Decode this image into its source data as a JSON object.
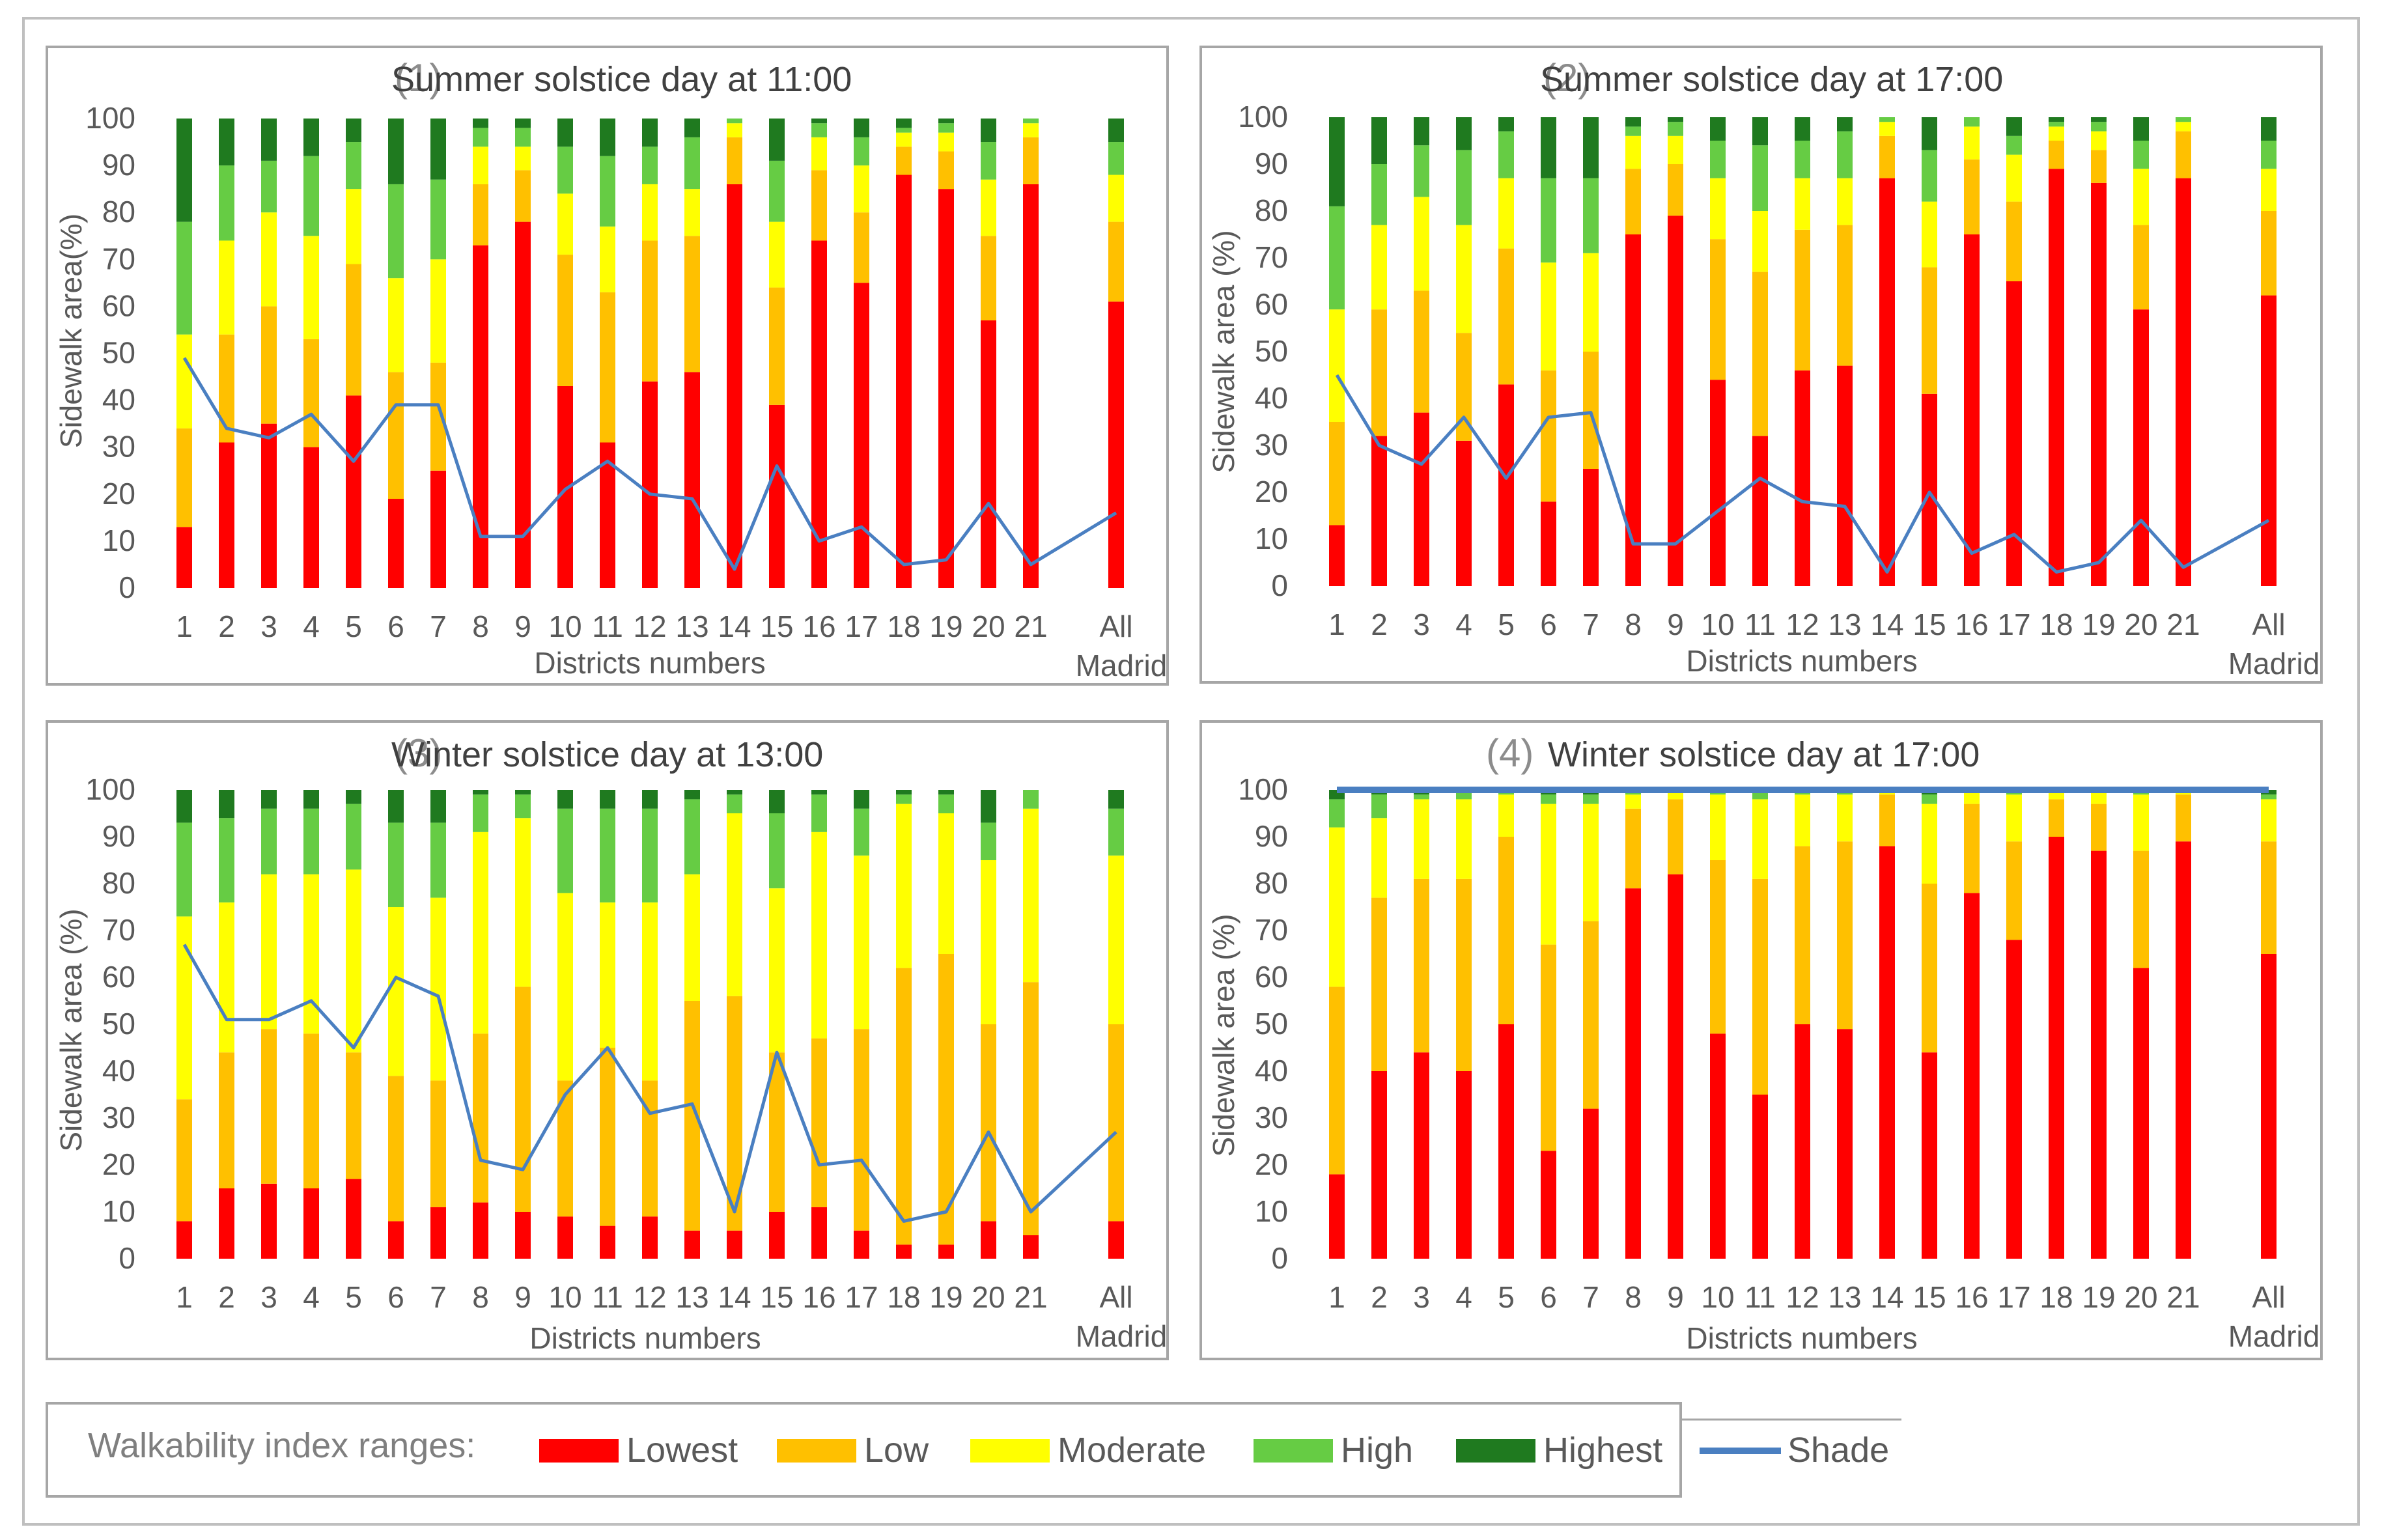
{
  "colors": {
    "Lowest": "#ff0000",
    "Low": "#ffc000",
    "Moderate": "#ffff00",
    "High": "#66cc44",
    "Highest": "#1f7a1f",
    "Shade": "#4a7fc1"
  },
  "legend": {
    "title": "Walkability index ranges:",
    "items": [
      {
        "label": "Lowest",
        "color": "#ff0000"
      },
      {
        "label": "Low",
        "color": "#ffc000"
      },
      {
        "label": "Moderate",
        "color": "#ffff00"
      },
      {
        "label": "High",
        "color": "#66cc44"
      },
      {
        "label": "Highest",
        "color": "#1f7a1f"
      }
    ],
    "line_label": "Shade"
  },
  "chart_data": [
    {
      "type": "bar",
      "stacked": true,
      "title_number": "(1)",
      "title": "Summer solstice day at 11:00",
      "xlabel": "Districts numbers",
      "ylabel": "Sidewalk area(%)",
      "ylim": [
        0,
        100
      ],
      "yticks": [
        0,
        10,
        20,
        30,
        40,
        50,
        60,
        70,
        80,
        90,
        100
      ],
      "categories": [
        "1",
        "2",
        "3",
        "4",
        "5",
        "6",
        "7",
        "8",
        "9",
        "10",
        "11",
        "12",
        "13",
        "14",
        "15",
        "16",
        "17",
        "18",
        "19",
        "20",
        "21",
        "All Madrid"
      ],
      "series": [
        {
          "name": "Lowest",
          "values": [
            13,
            31,
            35,
            30,
            41,
            19,
            25,
            73,
            78,
            43,
            31,
            44,
            46,
            86,
            39,
            74,
            65,
            88,
            85,
            57,
            86,
            61
          ]
        },
        {
          "name": "Low",
          "values": [
            21,
            23,
            25,
            23,
            28,
            27,
            23,
            13,
            11,
            28,
            32,
            30,
            29,
            10,
            25,
            15,
            15,
            6,
            8,
            18,
            10,
            17
          ]
        },
        {
          "name": "Moderate",
          "values": [
            20,
            20,
            20,
            22,
            16,
            20,
            22,
            8,
            5,
            13,
            14,
            12,
            10,
            3,
            14,
            7,
            10,
            3,
            4,
            12,
            3,
            10
          ]
        },
        {
          "name": "High",
          "values": [
            24,
            16,
            11,
            17,
            10,
            20,
            17,
            4,
            4,
            10,
            15,
            8,
            11,
            1,
            13,
            3,
            6,
            1,
            2,
            8,
            1,
            7
          ]
        },
        {
          "name": "Highest",
          "values": [
            22,
            10,
            9,
            8,
            5,
            14,
            13,
            2,
            2,
            6,
            8,
            6,
            4,
            0,
            9,
            1,
            4,
            2,
            1,
            5,
            0,
            5
          ]
        }
      ],
      "line": {
        "name": "Shade",
        "values": [
          49,
          34,
          32,
          37,
          27,
          39,
          39,
          11,
          11,
          21,
          27,
          20,
          19,
          4,
          26,
          10,
          13,
          5,
          6,
          18,
          5,
          16
        ]
      }
    },
    {
      "type": "bar",
      "stacked": true,
      "title_number": "(2)",
      "title": "Summer solstice day at 17:00",
      "xlabel": "Districts numbers",
      "ylabel": "Sidewalk area (%)",
      "ylim": [
        0,
        100
      ],
      "yticks": [
        0,
        10,
        20,
        30,
        40,
        50,
        60,
        70,
        80,
        90,
        100
      ],
      "categories": [
        "1",
        "2",
        "3",
        "4",
        "5",
        "6",
        "7",
        "8",
        "9",
        "10",
        "11",
        "12",
        "13",
        "14",
        "15",
        "16",
        "17",
        "18",
        "19",
        "20",
        "21",
        "All Madrid"
      ],
      "series": [
        {
          "name": "Lowest",
          "values": [
            13,
            32,
            37,
            31,
            43,
            18,
            25,
            75,
            79,
            44,
            32,
            46,
            47,
            87,
            41,
            75,
            65,
            89,
            86,
            59,
            87,
            62
          ]
        },
        {
          "name": "Low",
          "values": [
            22,
            27,
            26,
            23,
            29,
            28,
            25,
            14,
            11,
            30,
            35,
            30,
            30,
            9,
            27,
            16,
            17,
            6,
            7,
            18,
            10,
            18
          ]
        },
        {
          "name": "Moderate",
          "values": [
            24,
            18,
            20,
            23,
            15,
            23,
            21,
            7,
            6,
            13,
            13,
            11,
            10,
            3,
            14,
            7,
            10,
            3,
            4,
            12,
            2,
            9
          ]
        },
        {
          "name": "High",
          "values": [
            22,
            13,
            11,
            16,
            10,
            18,
            16,
            2,
            3,
            8,
            14,
            8,
            10,
            1,
            11,
            2,
            4,
            1,
            2,
            6,
            1,
            6
          ]
        },
        {
          "name": "Highest",
          "values": [
            19,
            10,
            6,
            7,
            3,
            13,
            13,
            2,
            1,
            5,
            6,
            5,
            3,
            0,
            7,
            0,
            4,
            1,
            1,
            5,
            0,
            5
          ]
        }
      ],
      "line": {
        "name": "Shade",
        "values": [
          45,
          30,
          26,
          36,
          23,
          36,
          37,
          9,
          9,
          16,
          23,
          18,
          17,
          3,
          20,
          7,
          11,
          3,
          5,
          14,
          4,
          14
        ]
      }
    },
    {
      "type": "bar",
      "stacked": true,
      "title_number": "(3)",
      "title": "Winter solstice day at 13:00",
      "xlabel": "Districts numbers",
      "ylabel": "Sidewalk area (%)",
      "ylim": [
        0,
        100
      ],
      "yticks": [
        0,
        10,
        20,
        30,
        40,
        50,
        60,
        70,
        80,
        90,
        100
      ],
      "categories": [
        "1",
        "2",
        "3",
        "4",
        "5",
        "6",
        "7",
        "8",
        "9",
        "10",
        "11",
        "12",
        "13",
        "14",
        "15",
        "16",
        "17",
        "18",
        "19",
        "20",
        "21",
        "All Madrid"
      ],
      "series": [
        {
          "name": "Lowest",
          "values": [
            8,
            15,
            16,
            15,
            17,
            8,
            11,
            12,
            10,
            9,
            7,
            9,
            6,
            6,
            10,
            11,
            6,
            3,
            3,
            8,
            5,
            8
          ]
        },
        {
          "name": "Low",
          "values": [
            26,
            29,
            33,
            33,
            27,
            31,
            27,
            36,
            48,
            29,
            38,
            29,
            49,
            50,
            34,
            36,
            43,
            59,
            62,
            42,
            54,
            42
          ]
        },
        {
          "name": "Moderate",
          "values": [
            39,
            32,
            33,
            34,
            39,
            36,
            39,
            43,
            36,
            40,
            31,
            38,
            27,
            39,
            35,
            44,
            37,
            35,
            30,
            35,
            37,
            36
          ]
        },
        {
          "name": "High",
          "values": [
            20,
            18,
            14,
            14,
            14,
            18,
            16,
            8,
            5,
            18,
            20,
            20,
            16,
            4,
            16,
            8,
            10,
            2,
            4,
            8,
            4,
            10
          ]
        },
        {
          "name": "Highest",
          "values": [
            7,
            6,
            4,
            4,
            3,
            7,
            7,
            1,
            1,
            4,
            4,
            4,
            2,
            1,
            5,
            1,
            4,
            1,
            1,
            7,
            0,
            4
          ]
        }
      ],
      "line": {
        "name": "Shade",
        "values": [
          67,
          51,
          51,
          55,
          45,
          60,
          56,
          21,
          19,
          35,
          45,
          31,
          33,
          10,
          44,
          20,
          21,
          8,
          10,
          27,
          10,
          27
        ]
      }
    },
    {
      "type": "bar",
      "stacked": true,
      "title_number": "(4)",
      "title": "Winter solstice day at 17:00",
      "xlabel": "Districts numbers",
      "ylabel": "Sidewalk area (%)",
      "ylim": [
        0,
        100
      ],
      "yticks": [
        0,
        10,
        20,
        30,
        40,
        50,
        60,
        70,
        80,
        90,
        100
      ],
      "categories": [
        "1",
        "2",
        "3",
        "4",
        "5",
        "6",
        "7",
        "8",
        "9",
        "10",
        "11",
        "12",
        "13",
        "14",
        "15",
        "16",
        "17",
        "18",
        "19",
        "20",
        "21",
        "All Madrid"
      ],
      "series": [
        {
          "name": "Lowest",
          "values": [
            18,
            40,
            44,
            40,
            50,
            23,
            32,
            79,
            82,
            48,
            35,
            50,
            49,
            88,
            44,
            78,
            68,
            90,
            87,
            62,
            89,
            65
          ]
        },
        {
          "name": "Low",
          "values": [
            40,
            37,
            37,
            41,
            40,
            44,
            40,
            17,
            16,
            37,
            46,
            38,
            40,
            11,
            36,
            19,
            21,
            8,
            10,
            25,
            10,
            24
          ]
        },
        {
          "name": "Moderate",
          "values": [
            34,
            17,
            17,
            17,
            9,
            30,
            25,
            3,
            2,
            14,
            17,
            11,
            10,
            1,
            17,
            3,
            10,
            2,
            3,
            12,
            1,
            9
          ]
        },
        {
          "name": "High",
          "values": [
            6,
            5,
            1,
            2,
            1,
            2,
            2,
            1,
            0,
            1,
            2,
            1,
            1,
            0,
            2,
            0,
            1,
            0,
            0,
            1,
            0,
            1
          ]
        },
        {
          "name": "Highest",
          "values": [
            2,
            1,
            1,
            0,
            0,
            1,
            1,
            0,
            0,
            0,
            0,
            0,
            0,
            0,
            1,
            0,
            0,
            0,
            0,
            0,
            0,
            1
          ]
        }
      ],
      "line": {
        "name": "Shade",
        "values": [
          100,
          100,
          100,
          100,
          100,
          100,
          100,
          100,
          100,
          100,
          100,
          100,
          100,
          100,
          100,
          100,
          100,
          100,
          100,
          100,
          100,
          100
        ]
      }
    }
  ]
}
